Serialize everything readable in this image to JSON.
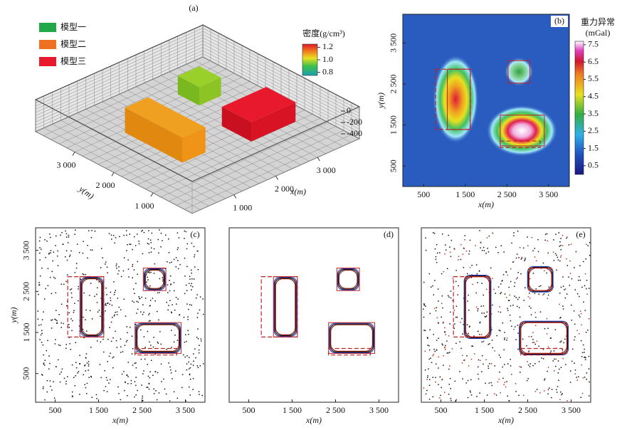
{
  "chart_data": [
    {
      "type": "block3d",
      "label": "(a)",
      "legend": [
        {
          "name": "模型一",
          "color": "#22a846"
        },
        {
          "name": "模型二",
          "color": "#f07021"
        },
        {
          "name": "模型三",
          "color": "#e8192c"
        }
      ],
      "colorbar": {
        "title": "密度(g/cm³)",
        "lim": [
          0.75,
          1.25
        ],
        "ticks": [
          0.8,
          {
            "value": 1,
            "label": "1.0"
          },
          1.2
        ]
      },
      "xlabel": "x(m)",
      "ylabel": "y(m)",
      "xlim": [
        0,
        4000
      ],
      "ylim": [
        0,
        4000
      ],
      "zlim": [
        -560,
        0
      ],
      "xticks": [
        {
          "value": 1000,
          "label": "1 000"
        },
        {
          "value": 2000,
          "label": "2 000"
        },
        {
          "value": 3000,
          "label": "3 000"
        }
      ],
      "yticks": [
        {
          "value": 1000,
          "label": "1 000"
        },
        {
          "value": 2000,
          "label": "2 000"
        },
        {
          "value": 3000,
          "label": "3 000"
        }
      ],
      "zticks": [
        0,
        -200,
        -400
      ]
    },
    {
      "type": "heatmap",
      "label": "(b)",
      "colorbar": {
        "title": "重力异常",
        "unit": "(mGal)",
        "lim": [
          0,
          7.7
        ],
        "ticks": [
          0.5,
          1.5,
          2.5,
          3.5,
          4.5,
          5.5,
          6.5,
          7.5
        ]
      },
      "xlabel": "x(m)",
      "ylabel": "y(m)",
      "xlim": [
        0,
        4000
      ],
      "ylim": [
        0,
        4200
      ],
      "xticks": [
        500,
        {
          "value": 1500,
          "label": "1 500"
        },
        {
          "value": 2500,
          "label": "2 500"
        },
        {
          "value": 3500,
          "label": "3 500"
        }
      ],
      "yticks": [
        500,
        {
          "value": 1500,
          "label": "1 500"
        },
        {
          "value": 2500,
          "label": "2 500"
        },
        {
          "value": 3500,
          "label": "3 500"
        }
      ]
    },
    {
      "type": "scatter",
      "label": "(c)",
      "xlabel": "x(m)",
      "ylabel": "y(m)",
      "xlim": [
        50,
        3950
      ],
      "ylim": [
        -200,
        4050
      ],
      "xticks": [
        500,
        {
          "value": 1500,
          "label": "1 500"
        },
        {
          "value": 2500,
          "label": "2 500"
        },
        {
          "value": 3500,
          "label": "3 500"
        }
      ],
      "yticks": [
        500,
        {
          "value": 1500,
          "label": "1 500"
        },
        {
          "value": 2500,
          "label": "2 500"
        },
        {
          "value": 3500,
          "label": "3 500"
        }
      ]
    },
    {
      "type": "scatter",
      "label": "(d)",
      "xlabel": "x(m)",
      "xlim": [
        50,
        3950
      ],
      "ylim": [
        -200,
        4050
      ],
      "xticks": [
        500,
        {
          "value": 1500,
          "label": "1 500"
        },
        {
          "value": 2500,
          "label": "2 500"
        },
        {
          "value": 3500,
          "label": "3 500"
        }
      ]
    },
    {
      "type": "scatter",
      "label": "(e)",
      "xlabel": "x(m)",
      "xlim": [
        50,
        3950
      ],
      "ylim": [
        -200,
        4050
      ],
      "xticks": [
        500,
        {
          "value": 1500,
          "label": "1 500"
        },
        {
          "value": 2500,
          "label": "2 500"
        },
        {
          "value": 3500,
          "label": "3 500"
        }
      ]
    }
  ]
}
